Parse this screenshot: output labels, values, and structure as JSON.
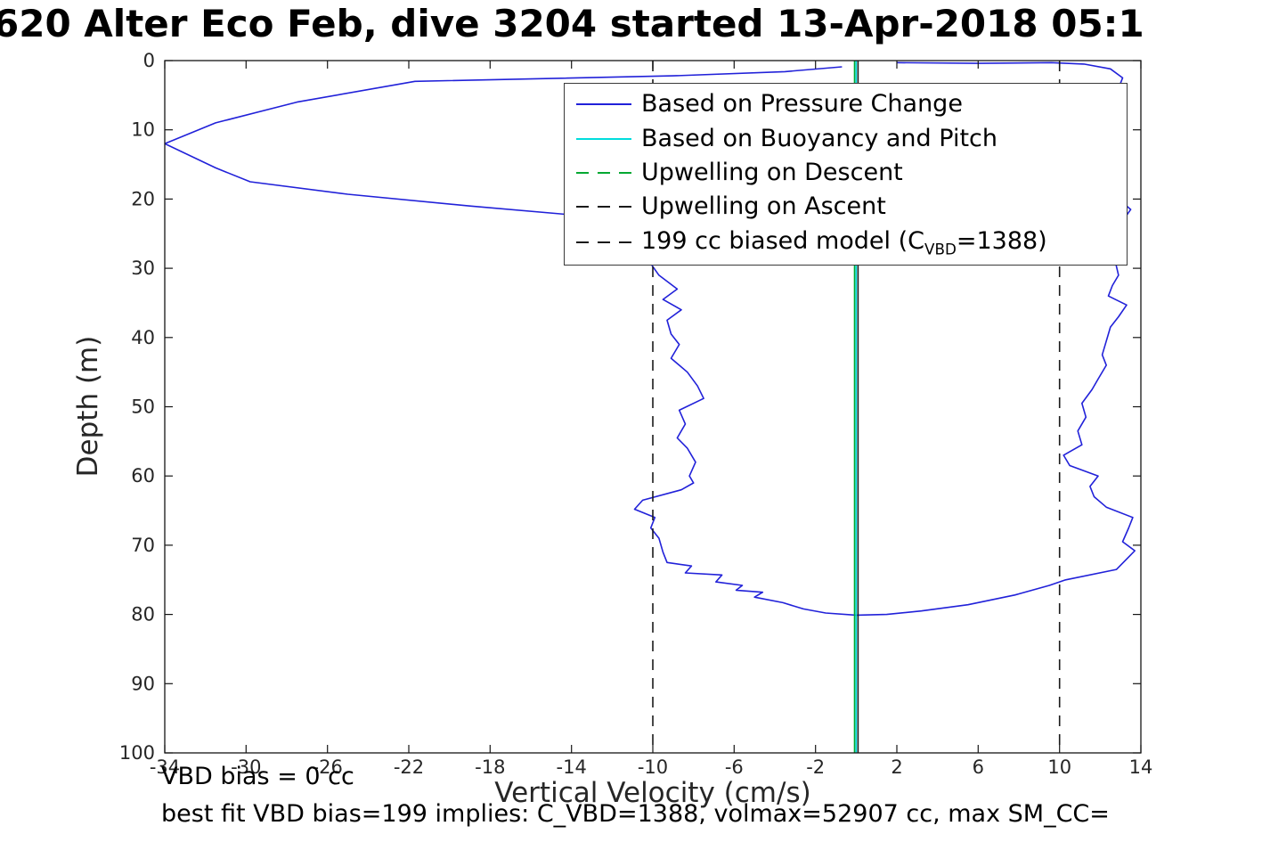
{
  "chart_data": {
    "type": "line",
    "title": "620 Alter Eco Feb, dive 3204 started 13-Apr-2018 05:1",
    "xlabel": "Vertical Velocity (cm/s)",
    "ylabel": "Depth (m)",
    "xlim": [
      -34,
      14
    ],
    "ylim": [
      0,
      100
    ],
    "y_inverted": true,
    "grid": false,
    "legend_position": "upper right",
    "xticks": [
      -34,
      -30,
      -26,
      -22,
      -18,
      -14,
      -10,
      -6,
      -2,
      2,
      6,
      10,
      14
    ],
    "yticks": [
      0,
      10,
      20,
      30,
      40,
      50,
      60,
      70,
      80,
      90,
      100
    ],
    "axis_color": "#151515",
    "tick_label_color": "#262626",
    "series": [
      {
        "name": "Based on Pressure Change",
        "color": "#2121d9",
        "width": 1.6,
        "dash": "",
        "segments": [
          [
            [
              -0.7,
              0.9
            ],
            [
              -3.5,
              1.6
            ],
            [
              -9.0,
              2.2
            ],
            [
              -21.7,
              3.0
            ],
            [
              -27.5,
              6.0
            ],
            [
              -31.5,
              9.0
            ],
            [
              -34.0,
              12.0
            ],
            [
              -31.5,
              15.5
            ],
            [
              -29.8,
              17.5
            ],
            [
              -25.0,
              19.3
            ],
            [
              -19.0,
              21.0
            ],
            [
              -14.3,
              22.2
            ],
            [
              -12.4,
              24.0
            ],
            [
              -11.0,
              26.0
            ],
            [
              -10.3,
              28.5
            ],
            [
              -9.7,
              31.0
            ],
            [
              -8.8,
              33.0
            ],
            [
              -9.5,
              34.5
            ],
            [
              -8.6,
              36.0
            ],
            [
              -9.3,
              37.5
            ],
            [
              -9.1,
              39.5
            ],
            [
              -8.7,
              41.0
            ],
            [
              -9.1,
              43.0
            ],
            [
              -8.3,
              45.0
            ],
            [
              -7.8,
              47.0
            ],
            [
              -7.5,
              48.8
            ],
            [
              -8.7,
              50.5
            ],
            [
              -8.4,
              52.5
            ],
            [
              -8.8,
              54.5
            ],
            [
              -8.3,
              56.0
            ],
            [
              -7.9,
              58.0
            ],
            [
              -8.2,
              60.0
            ],
            [
              -8.0,
              61.0
            ],
            [
              -8.6,
              62.0
            ],
            [
              -10.5,
              63.5
            ],
            [
              -10.9,
              64.8
            ],
            [
              -9.9,
              66.0
            ],
            [
              -10.1,
              67.5
            ],
            [
              -9.7,
              69.0
            ],
            [
              -9.5,
              71.0
            ],
            [
              -9.3,
              72.5
            ],
            [
              -8.1,
              73.0
            ],
            [
              -8.4,
              74.0
            ],
            [
              -6.6,
              74.3
            ],
            [
              -6.9,
              75.3
            ],
            [
              -5.6,
              75.8
            ],
            [
              -5.9,
              76.5
            ],
            [
              -4.6,
              76.8
            ],
            [
              -5.0,
              77.5
            ],
            [
              -3.6,
              78.3
            ],
            [
              -2.6,
              79.2
            ],
            [
              -1.5,
              79.8
            ],
            [
              0.0,
              80.1
            ],
            [
              1.5,
              80.0
            ],
            [
              3.2,
              79.5
            ],
            [
              5.5,
              78.6
            ],
            [
              7.8,
              77.2
            ],
            [
              9.5,
              75.8
            ],
            [
              10.3,
              75.0
            ],
            [
              12.8,
              73.5
            ],
            [
              13.7,
              70.8
            ],
            [
              13.1,
              69.5
            ],
            [
              13.4,
              67.5
            ],
            [
              13.6,
              66.0
            ],
            [
              12.3,
              64.5
            ],
            [
              11.7,
              63.0
            ],
            [
              11.5,
              61.5
            ],
            [
              11.9,
              60.0
            ],
            [
              10.5,
              58.5
            ],
            [
              10.2,
              57.0
            ],
            [
              11.1,
              55.5
            ],
            [
              10.9,
              53.5
            ],
            [
              11.3,
              51.5
            ],
            [
              11.1,
              49.5
            ],
            [
              11.6,
              47.5
            ],
            [
              11.9,
              46.0
            ],
            [
              12.3,
              44.0
            ],
            [
              12.1,
              42.5
            ],
            [
              12.3,
              40.5
            ],
            [
              12.5,
              38.5
            ],
            [
              12.9,
              37.0
            ],
            [
              13.3,
              35.3
            ],
            [
              12.4,
              34.0
            ],
            [
              12.6,
              32.5
            ],
            [
              12.9,
              31.0
            ],
            [
              12.7,
              28.5
            ],
            [
              12.9,
              24.0
            ],
            [
              13.5,
              21.5
            ],
            [
              12.9,
              20.0
            ],
            [
              12.8,
              18.0
            ],
            [
              13.0,
              10.0
            ],
            [
              12.9,
              4.0
            ],
            [
              13.1,
              2.5
            ],
            [
              12.5,
              1.2
            ],
            [
              11.2,
              0.5
            ],
            [
              9.6,
              0.3
            ],
            [
              6.0,
              0.4
            ],
            [
              2.0,
              0.3
            ]
          ]
        ]
      },
      {
        "name": "Based on Buoyancy and Pitch",
        "color": "#00dcdc",
        "width": 1.6,
        "dash": "",
        "segments": [
          [
            [
              0.0,
              0
            ],
            [
              0.0,
              100
            ]
          ]
        ]
      },
      {
        "name": "Upwelling on Descent",
        "color": "#00a832",
        "width": 1.6,
        "dash": "",
        "segments": [
          [
            [
              -0.08,
              0
            ],
            [
              -0.08,
              100
            ]
          ]
        ]
      },
      {
        "name": "Upwelling on Ascent",
        "color": "#1a1a1a",
        "width": 1.6,
        "dash": "",
        "segments": [
          [
            [
              0.09,
              0
            ],
            [
              0.09,
              100
            ]
          ]
        ]
      },
      {
        "name": "199 cc biased model (C_VBD=1388)",
        "color": "#1a1a1a",
        "width": 1.6,
        "dash": "12,9",
        "segments": [
          [
            [
              -10,
              0
            ],
            [
              -10,
              100
            ]
          ],
          [
            [
              10,
              0
            ],
            [
              10,
              100
            ]
          ]
        ]
      }
    ]
  },
  "legend": {
    "items": [
      {
        "label": "Based on Pressure Change",
        "color": "#2121d9",
        "dash": false
      },
      {
        "label": "Based on Buoyancy and Pitch",
        "color": "#00dcdc",
        "dash": false
      },
      {
        "label": "Upwelling on Descent",
        "color": "#00a832",
        "dash": true
      },
      {
        "label": "Upwelling on Ascent",
        "color": "#1a1a1a",
        "dash": true
      },
      {
        "pre": "199 cc biased model (C",
        "sub": "VBD",
        "post": "=1388)",
        "color": "#1a1a1a",
        "dash": true
      }
    ]
  },
  "annotations": {
    "vbd_bias": "VBD bias = 0 cc",
    "best_fit": "best fit VBD bias=199 implies: C_VBD=1388, volmax=52907 cc, max SM_CC="
  }
}
